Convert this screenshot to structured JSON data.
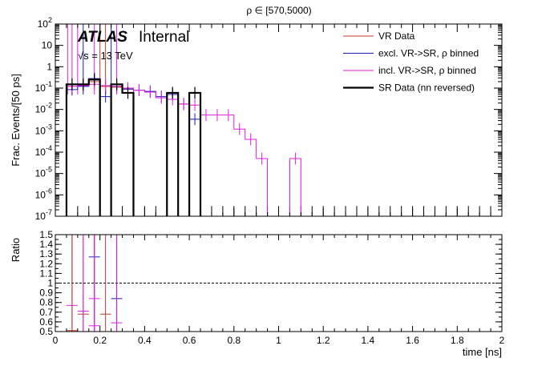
{
  "chart_data": {
    "title": "ρ ∈ [570,5000)",
    "atlas_label": "ATLAS",
    "atlas_status": "Internal",
    "energy_label": "√s = 13 TeV",
    "xlabel": "time [ns]",
    "upper": {
      "type": "histogram",
      "ylabel": "Frac. Events/[50 ps]",
      "yscale": "log",
      "ylim": [
        1e-07,
        100
      ],
      "ytick_labels": [
        "10^-7",
        "10^-6",
        "10^-5",
        "10^-4",
        "10^-3",
        "10^-2",
        "10^-1",
        "1",
        "10",
        "10^2"
      ],
      "xlim": [
        0,
        2
      ],
      "legend_position": "top-right",
      "series": [
        {
          "name": "VR Data",
          "color": "#c0392b",
          "width": 1,
          "bins": [
            {
              "x0": 0.05,
              "x1": 0.1,
              "y": 0.12
            },
            {
              "x0": 0.1,
              "x1": 0.15,
              "y": 0.14
            },
            {
              "x0": 0.15,
              "x1": 0.2,
              "y": 0.2
            },
            {
              "x0": 0.2,
              "x1": 0.25,
              "y": 0.12
            },
            {
              "x0": 0.25,
              "x1": 0.3,
              "y": 0.11
            },
            {
              "x0": 0.3,
              "x1": 0.35,
              "y": 0.09
            }
          ]
        },
        {
          "name": "excl. VR->SR, ρ binned",
          "color": "#1a1ab8",
          "width": 1,
          "bins": [
            {
              "x0": 0.05,
              "x1": 0.1,
              "y": 0.085
            },
            {
              "x0": 0.1,
              "x1": 0.15,
              "y": 0.12
            },
            {
              "x0": 0.15,
              "x1": 0.2,
              "y": 0.28
            },
            {
              "x0": 0.2,
              "x1": 0.25,
              "y": 0.04
            },
            {
              "x0": 0.25,
              "x1": 0.3,
              "y": 0.12
            },
            {
              "x0": 0.3,
              "x1": 0.35,
              "y": 0.09
            },
            {
              "x0": 0.35,
              "x1": 0.4,
              "y": 0.08
            },
            {
              "x0": 0.4,
              "x1": 0.45,
              "y": 0.07
            },
            {
              "x0": 0.45,
              "x1": 0.5,
              "y": 0.04
            },
            {
              "x0": 0.5,
              "x1": 0.55,
              "y": 0.05
            },
            {
              "x0": 0.55,
              "x1": 0.6,
              "y": 0.018
            },
            {
              "x0": 0.6,
              "x1": 0.65,
              "y": 0.0035
            }
          ]
        },
        {
          "name": "incl. VR->SR, ρ binned",
          "color": "#e01ee0",
          "width": 1,
          "bins": [
            {
              "x0": 0.05,
              "x1": 0.1,
              "y": 0.12
            },
            {
              "x0": 0.1,
              "x1": 0.15,
              "y": 0.13
            },
            {
              "x0": 0.15,
              "x1": 0.2,
              "y": 0.15
            },
            {
              "x0": 0.2,
              "x1": 0.25,
              "y": 0.13
            },
            {
              "x0": 0.25,
              "x1": 0.3,
              "y": 0.12
            },
            {
              "x0": 0.3,
              "x1": 0.35,
              "y": 0.1
            },
            {
              "x0": 0.35,
              "x1": 0.4,
              "y": 0.08
            },
            {
              "x0": 0.4,
              "x1": 0.45,
              "y": 0.065
            },
            {
              "x0": 0.45,
              "x1": 0.5,
              "y": 0.035
            },
            {
              "x0": 0.5,
              "x1": 0.55,
              "y": 0.03
            },
            {
              "x0": 0.55,
              "x1": 0.6,
              "y": 0.018
            },
            {
              "x0": 0.6,
              "x1": 0.65,
              "y": 0.016
            },
            {
              "x0": 0.65,
              "x1": 0.7,
              "y": 0.0055
            },
            {
              "x0": 0.7,
              "x1": 0.75,
              "y": 0.0055
            },
            {
              "x0": 0.75,
              "x1": 0.8,
              "y": 0.0055
            },
            {
              "x0": 0.8,
              "x1": 0.85,
              "y": 0.0012
            },
            {
              "x0": 0.85,
              "x1": 0.9,
              "y": 0.0004
            },
            {
              "x0": 0.9,
              "x1": 0.95,
              "y": 5e-05
            },
            {
              "x0": 0.95,
              "x1": 1.0,
              "y": 1e-07
            },
            {
              "x0": 1.0,
              "x1": 1.05,
              "y": 1e-07
            },
            {
              "x0": 1.05,
              "x1": 1.1,
              "y": 5e-05
            },
            {
              "x0": 1.1,
              "x1": 1.15,
              "y": 1e-07
            }
          ]
        },
        {
          "name": "SR Data (nn reversed)",
          "color": "#000000",
          "width": 2.2,
          "bins": [
            {
              "x0": 0.05,
              "x1": 0.1,
              "y": 0.15
            },
            {
              "x0": 0.1,
              "x1": 0.15,
              "y": 0.15
            },
            {
              "x0": 0.15,
              "x1": 0.2,
              "y": 0.25
            },
            {
              "x0": 0.25,
              "x1": 0.3,
              "y": 0.15
            },
            {
              "x0": 0.3,
              "x1": 0.35,
              "y": 0.06
            },
            {
              "x0": 0.5,
              "x1": 0.55,
              "y": 0.06
            },
            {
              "x0": 0.6,
              "x1": 0.65,
              "y": 0.06
            }
          ]
        }
      ],
      "tall_bars": [
        {
          "x": 0.055,
          "color": "#e01ee0"
        },
        {
          "x": 0.075,
          "color": "#e01ee0"
        },
        {
          "x": 0.1,
          "color": "#e01ee0"
        },
        {
          "x": 0.125,
          "color": "#1a1ab8"
        },
        {
          "x": 0.175,
          "color": "#e01ee0"
        },
        {
          "x": 0.2,
          "color": "#c0392b"
        },
        {
          "x": 0.225,
          "color": "#c0392b"
        },
        {
          "x": 0.25,
          "color": "#1a1ab8"
        },
        {
          "x": 0.275,
          "color": "#e01ee0"
        }
      ]
    },
    "lower": {
      "type": "ratio",
      "ylabel": "Ratio",
      "ylim": [
        0.5,
        1.5
      ],
      "reference_line": 1,
      "ytick_labels": [
        "0.5",
        "0.6",
        "0.7",
        "0.8",
        "0.9",
        "1",
        "1.1",
        "1.2",
        "1.3",
        "1.4",
        "1.5"
      ],
      "xtick_labels": [
        "0",
        "0.2",
        "0.4",
        "0.6",
        "0.8",
        "1",
        "1.2",
        "1.4",
        "1.6",
        "1.8",
        "2"
      ],
      "points": [
        {
          "x": 0.075,
          "y": 0.77,
          "color": "#e01ee0",
          "y_low": 0.5,
          "y_high": 1.5
        },
        {
          "x": 0.075,
          "y": 0.51,
          "color": "#c0392b",
          "y_low": 0.5,
          "y_high": 1.5
        },
        {
          "x": 0.125,
          "y": 0.68,
          "color": "#c0392b",
          "y_low": 0.5,
          "y_high": 1.5
        },
        {
          "x": 0.125,
          "y": 0.71,
          "color": "#e01ee0",
          "y_low": 0.5,
          "y_high": 1.5
        },
        {
          "x": 0.175,
          "y": 1.27,
          "color": "#1a1ab8",
          "y_low": 0.5,
          "y_high": 1.5
        },
        {
          "x": 0.175,
          "y": 0.84,
          "color": "#e01ee0",
          "y_low": 0.5,
          "y_high": 1.5
        },
        {
          "x": 0.175,
          "y": 0.56,
          "color": "#e01ee0",
          "y_low": 0.5,
          "y_high": 1.5
        },
        {
          "x": 0.225,
          "y": 0.68,
          "color": "#c0392b",
          "y_low": 0.5,
          "y_high": 1.5
        },
        {
          "x": 0.275,
          "y": 0.84,
          "color": "#1a1ab8",
          "y_low": 0.5,
          "y_high": 1.5
        },
        {
          "x": 0.275,
          "y": 0.59,
          "color": "#e01ee0",
          "y_low": 0.5,
          "y_high": 1.5
        }
      ]
    }
  }
}
